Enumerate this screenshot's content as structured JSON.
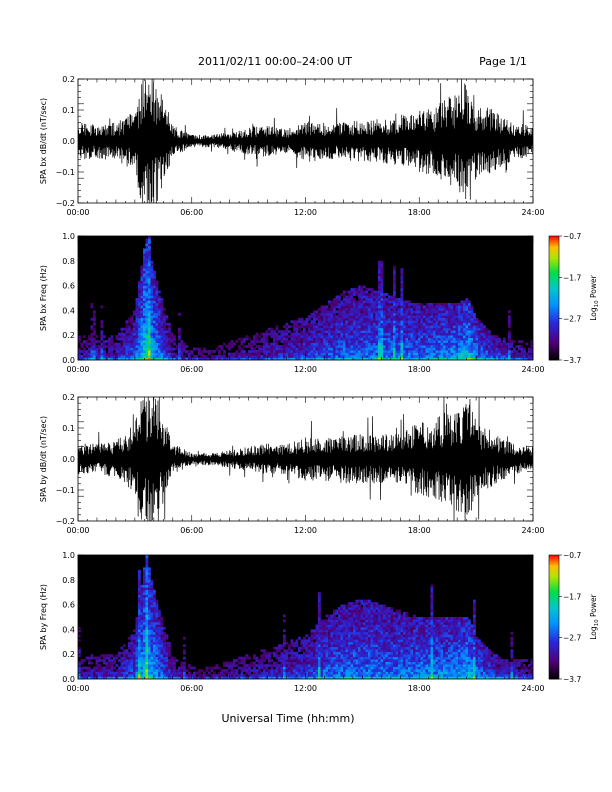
{
  "header": {
    "title": "2011/02/11   00:00–24:00 UT",
    "page": "Page 1/1"
  },
  "xaxis": {
    "label": "Universal Time (hh:mm)",
    "range": [
      0,
      24
    ],
    "tick_labels": [
      "00:00",
      "06:00",
      "12:00",
      "18:00",
      "24:00"
    ],
    "tick_values": [
      0,
      6,
      12,
      18,
      24
    ]
  },
  "chart_data": [
    {
      "type": "line",
      "ylabel": "SPA bx dB/dt (nT/sec)",
      "ylim": [
        -0.2,
        0.2
      ],
      "y_tick_labels": [
        "0.2",
        "0.1",
        "0.0",
        "−0.1",
        "−0.2"
      ],
      "y_tick_values": [
        0.2,
        0.1,
        0.0,
        -0.1,
        -0.2
      ],
      "x": [
        0,
        1,
        2,
        3,
        3.4,
        3.8,
        4.2,
        5,
        6,
        7,
        8,
        9,
        10,
        11,
        12,
        13,
        14,
        15,
        16,
        17,
        18,
        19,
        20,
        20.6,
        21,
        22,
        23,
        24
      ],
      "amplitude": [
        0.06,
        0.06,
        0.06,
        0.1,
        0.22,
        0.22,
        0.2,
        0.05,
        0.02,
        0.02,
        0.03,
        0.05,
        0.05,
        0.04,
        0.07,
        0.06,
        0.06,
        0.07,
        0.07,
        0.08,
        0.1,
        0.12,
        0.16,
        0.22,
        0.12,
        0.1,
        0.06,
        0.05
      ]
    },
    {
      "type": "heatmap",
      "ylabel": "SPA bx Freq (Hz)",
      "ylim": [
        0.0,
        1.0
      ],
      "y_tick_labels": [
        "1.0",
        "0.8",
        "0.6",
        "0.4",
        "0.2",
        "0.0"
      ],
      "y_tick_values": [
        1.0,
        0.8,
        0.6,
        0.4,
        0.2,
        0.0
      ],
      "colorbar": {
        "label_main": "Log",
        "label_sub": "10",
        "label_tail": " Power",
        "range": [
          -3.7,
          -0.7
        ],
        "tick_labels": [
          "−0.7",
          "−1.7",
          "−2.7",
          "−3.7"
        ],
        "tick_values": [
          -0.7,
          -1.7,
          -2.7,
          -3.7
        ]
      },
      "x": [
        0,
        1,
        2,
        3,
        3.6,
        4.2,
        5,
        6,
        7,
        8,
        9,
        10,
        11,
        12,
        13,
        14,
        15,
        16,
        17,
        18,
        19,
        20,
        20.6,
        21,
        22,
        23,
        24
      ],
      "log_power_low_freq": [
        -3.0,
        -2.9,
        -2.9,
        -2.5,
        -1.8,
        -2.3,
        -2.9,
        -3.1,
        -3.2,
        -3.1,
        -3.0,
        -2.9,
        -2.8,
        -2.7,
        -2.6,
        -2.5,
        -2.5,
        -2.4,
        -2.4,
        -2.4,
        -2.3,
        -2.2,
        -1.9,
        -2.3,
        -2.6,
        -2.8,
        -2.9
      ],
      "activity_top_freq": [
        0.2,
        0.2,
        0.2,
        0.4,
        1.0,
        0.6,
        0.2,
        0.1,
        0.1,
        0.15,
        0.2,
        0.25,
        0.3,
        0.35,
        0.45,
        0.55,
        0.6,
        0.55,
        0.5,
        0.45,
        0.45,
        0.45,
        0.5,
        0.35,
        0.2,
        0.15,
        0.15
      ]
    },
    {
      "type": "line",
      "ylabel": "SPA by dB/dt (nT/sec)",
      "ylim": [
        -0.2,
        0.2
      ],
      "y_tick_labels": [
        "0.2",
        "0.1",
        "0.0",
        "−0.1",
        "−0.2"
      ],
      "y_tick_values": [
        0.2,
        0.1,
        0.0,
        -0.1,
        -0.2
      ],
      "x": [
        0,
        1,
        2,
        3,
        3.4,
        3.8,
        4.2,
        5,
        6,
        7,
        8,
        9,
        10,
        11,
        12,
        13,
        14,
        15,
        16,
        17,
        18,
        19,
        20,
        20.6,
        21,
        22,
        23,
        24
      ],
      "amplitude": [
        0.05,
        0.05,
        0.06,
        0.12,
        0.22,
        0.22,
        0.2,
        0.05,
        0.02,
        0.02,
        0.03,
        0.04,
        0.05,
        0.05,
        0.07,
        0.07,
        0.08,
        0.08,
        0.08,
        0.08,
        0.12,
        0.14,
        0.17,
        0.22,
        0.13,
        0.08,
        0.05,
        0.04
      ]
    },
    {
      "type": "heatmap",
      "ylabel": "SPA by Freq (Hz)",
      "ylim": [
        0.0,
        1.0
      ],
      "y_tick_labels": [
        "1.0",
        "0.8",
        "0.6",
        "0.4",
        "0.2",
        "0.0"
      ],
      "y_tick_values": [
        1.0,
        0.8,
        0.6,
        0.4,
        0.2,
        0.0
      ],
      "colorbar": {
        "label_main": "Log",
        "label_sub": "10",
        "label_tail": " Power",
        "range": [
          -3.7,
          -0.7
        ],
        "tick_labels": [
          "−0.7",
          "−1.7",
          "−2.7",
          "−3.7"
        ],
        "tick_values": [
          -0.7,
          -1.7,
          -2.7,
          -3.7
        ]
      },
      "x": [
        0,
        1,
        2,
        3,
        3.6,
        4.2,
        5,
        6,
        7,
        8,
        9,
        10,
        11,
        12,
        13,
        14,
        15,
        16,
        17,
        18,
        19,
        20,
        20.6,
        21,
        22,
        23,
        24
      ],
      "log_power_low_freq": [
        -3.0,
        -2.9,
        -2.9,
        -2.5,
        -1.9,
        -2.3,
        -2.9,
        -3.1,
        -3.2,
        -3.1,
        -3.0,
        -2.9,
        -2.8,
        -2.7,
        -2.5,
        -2.4,
        -2.4,
        -2.4,
        -2.4,
        -2.3,
        -2.3,
        -2.2,
        -2.0,
        -2.3,
        -2.6,
        -2.8,
        -2.9
      ],
      "activity_top_freq": [
        0.2,
        0.2,
        0.2,
        0.4,
        1.0,
        0.6,
        0.2,
        0.1,
        0.1,
        0.15,
        0.2,
        0.25,
        0.3,
        0.35,
        0.5,
        0.6,
        0.65,
        0.6,
        0.55,
        0.5,
        0.5,
        0.5,
        0.5,
        0.35,
        0.2,
        0.15,
        0.15
      ]
    }
  ]
}
